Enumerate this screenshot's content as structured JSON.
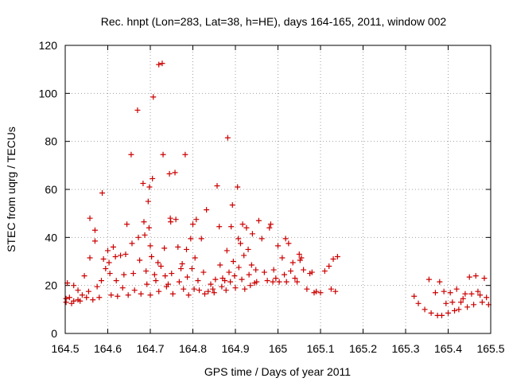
{
  "chart_data": {
    "type": "scatter",
    "title": "Rec. hnpt (Lon=283, Lat=38, h=HE), days 164-165, 2011, window 002",
    "xlabel": "GPS time / Days of year 2011",
    "ylabel": "STEC from uqrg / TECUs",
    "xlim": [
      164.5,
      165.5
    ],
    "ylim": [
      0,
      120
    ],
    "xticks": [
      164.5,
      164.6,
      164.7,
      164.8,
      164.9,
      165,
      165.1,
      165.2,
      165.3,
      165.4,
      165.5
    ],
    "xtick_labels": [
      "164.5",
      "164.6",
      "164.7",
      "164.8",
      "164.9",
      "165",
      "165.1",
      "165.2",
      "165.3",
      "165.4",
      "165.5"
    ],
    "yticks": [
      0,
      20,
      40,
      60,
      80,
      100,
      120
    ],
    "ytick_labels": [
      "0",
      "20",
      "40",
      "60",
      "80",
      "100",
      "120"
    ],
    "grid": true,
    "marker": "+",
    "series": [
      {
        "color": "#cc0000",
        "points": [
          [
            164.502,
            14.5
          ],
          [
            164.502,
            13
          ],
          [
            164.505,
            21
          ],
          [
            164.51,
            15
          ],
          [
            164.515,
            12.5
          ],
          [
            164.52,
            20
          ],
          [
            164.52,
            13.5
          ],
          [
            164.53,
            14
          ],
          [
            164.53,
            18
          ],
          [
            164.535,
            13.5
          ],
          [
            164.54,
            16
          ],
          [
            164.545,
            24
          ],
          [
            164.55,
            15
          ],
          [
            164.555,
            17.5
          ],
          [
            164.558,
            48
          ],
          [
            164.558,
            31.5
          ],
          [
            164.565,
            14
          ],
          [
            164.57,
            43
          ],
          [
            164.57,
            38.5
          ],
          [
            164.575,
            19.5
          ],
          [
            164.58,
            15
          ],
          [
            164.585,
            22
          ],
          [
            164.587,
            58.5
          ],
          [
            164.59,
            31
          ],
          [
            164.595,
            27
          ],
          [
            164.6,
            34.5
          ],
          [
            164.603,
            29.5
          ],
          [
            164.605,
            25
          ],
          [
            164.608,
            16
          ],
          [
            164.613,
            36
          ],
          [
            164.618,
            32
          ],
          [
            164.62,
            22
          ],
          [
            164.623,
            15.5
          ],
          [
            164.63,
            32.5
          ],
          [
            164.635,
            19
          ],
          [
            164.638,
            24.5
          ],
          [
            164.642,
            33
          ],
          [
            164.645,
            45.5
          ],
          [
            164.648,
            16
          ],
          [
            164.655,
            74.5
          ],
          [
            164.657,
            37.5
          ],
          [
            164.66,
            25
          ],
          [
            164.663,
            18
          ],
          [
            164.67,
            93
          ],
          [
            164.672,
            40
          ],
          [
            164.675,
            30.5
          ],
          [
            164.678,
            16.5
          ],
          [
            164.683,
            62.5
          ],
          [
            164.685,
            46.5
          ],
          [
            164.687,
            41
          ],
          [
            164.69,
            26
          ],
          [
            164.692,
            20.5
          ],
          [
            164.695,
            55
          ],
          [
            164.697,
            44
          ],
          [
            164.698,
            61
          ],
          [
            164.7,
            36.5
          ],
          [
            164.7,
            16
          ],
          [
            164.703,
            32
          ],
          [
            164.707,
            98.5
          ],
          [
            164.705,
            64.5
          ],
          [
            164.71,
            24.5
          ],
          [
            164.713,
            22
          ],
          [
            164.718,
            29.5
          ],
          [
            164.72,
            112
          ],
          [
            164.72,
            17.5
          ],
          [
            164.725,
            28
          ],
          [
            164.728,
            112.5
          ],
          [
            164.73,
            74.5
          ],
          [
            164.733,
            35.5
          ],
          [
            164.735,
            24
          ],
          [
            164.738,
            19.5
          ],
          [
            164.742,
            20.5
          ],
          [
            164.745,
            66.5
          ],
          [
            164.747,
            48
          ],
          [
            164.748,
            46.5
          ],
          [
            164.75,
            25
          ],
          [
            164.753,
            16.5
          ],
          [
            164.758,
            67
          ],
          [
            164.76,
            47.5
          ],
          [
            164.765,
            36
          ],
          [
            164.768,
            21.5
          ],
          [
            164.772,
            27
          ],
          [
            164.775,
            29
          ],
          [
            164.778,
            18.5
          ],
          [
            164.782,
            74.5
          ],
          [
            164.785,
            35
          ],
          [
            164.787,
            23.5
          ],
          [
            164.79,
            16
          ],
          [
            164.795,
            39.5
          ],
          [
            164.798,
            27
          ],
          [
            164.8,
            45.5
          ],
          [
            164.803,
            18.5
          ],
          [
            164.805,
            31.5
          ],
          [
            164.808,
            47.5
          ],
          [
            164.812,
            22
          ],
          [
            164.815,
            18
          ],
          [
            164.82,
            39.5
          ],
          [
            164.825,
            25.5
          ],
          [
            164.828,
            16.5
          ],
          [
            164.832,
            51.5
          ],
          [
            164.836,
            17.5
          ],
          [
            164.842,
            20.5
          ],
          [
            164.847,
            18.5
          ],
          [
            164.85,
            17
          ],
          [
            164.853,
            22.5
          ],
          [
            164.857,
            61.5
          ],
          [
            164.862,
            44.5
          ],
          [
            164.864,
            28.5
          ],
          [
            164.868,
            19.5
          ],
          [
            164.87,
            23
          ],
          [
            164.875,
            22
          ],
          [
            164.878,
            18
          ],
          [
            164.88,
            34.5
          ],
          [
            164.882,
            81.5
          ],
          [
            164.885,
            25.5
          ],
          [
            164.888,
            21.5
          ],
          [
            164.89,
            44.5
          ],
          [
            164.893,
            53.5
          ],
          [
            164.895,
            30
          ],
          [
            164.898,
            24
          ],
          [
            164.9,
            19
          ],
          [
            164.905,
            61
          ],
          [
            164.907,
            39.5
          ],
          [
            164.908,
            27.5
          ],
          [
            164.912,
            37.5
          ],
          [
            164.915,
            22.5
          ],
          [
            164.917,
            45.5
          ],
          [
            164.92,
            32.5
          ],
          [
            164.922,
            18.5
          ],
          [
            164.926,
            44
          ],
          [
            164.93,
            35
          ],
          [
            164.932,
            24.5
          ],
          [
            164.935,
            20
          ],
          [
            164.938,
            28.5
          ],
          [
            164.94,
            41.5
          ],
          [
            164.945,
            21
          ],
          [
            164.948,
            26.5
          ],
          [
            164.95,
            21.5
          ],
          [
            164.955,
            47
          ],
          [
            164.962,
            39.5
          ],
          [
            164.968,
            25.5
          ],
          [
            164.975,
            22
          ],
          [
            164.98,
            44
          ],
          [
            164.983,
            45.5
          ],
          [
            164.988,
            21.5
          ],
          [
            164.99,
            26.5
          ],
          [
            164.995,
            23
          ],
          [
            165.0,
            36.5
          ],
          [
            165.003,
            21.5
          ],
          [
            165.01,
            31.5
          ],
          [
            165.015,
            24.5
          ],
          [
            165.018,
            39.5
          ],
          [
            165.02,
            21.5
          ],
          [
            165.025,
            37.5
          ],
          [
            165.03,
            26
          ],
          [
            165.035,
            29.5
          ],
          [
            165.04,
            23
          ],
          [
            165.045,
            21.5
          ],
          [
            165.05,
            33
          ],
          [
            165.052,
            30.5
          ],
          [
            165.055,
            31.5
          ],
          [
            165.06,
            26.5
          ],
          [
            165.068,
            18.5
          ],
          [
            165.075,
            25
          ],
          [
            165.08,
            25.5
          ],
          [
            165.085,
            17
          ],
          [
            165.09,
            17.5
          ],
          [
            165.1,
            17
          ],
          [
            165.11,
            26
          ],
          [
            165.12,
            28
          ],
          [
            165.125,
            18.5
          ],
          [
            165.13,
            31
          ],
          [
            165.135,
            17.5
          ],
          [
            165.14,
            32
          ],
          [
            165.32,
            15.5
          ],
          [
            165.33,
            12.5
          ],
          [
            165.345,
            10
          ],
          [
            165.355,
            22.5
          ],
          [
            165.36,
            8.5
          ],
          [
            165.37,
            17
          ],
          [
            165.375,
            7.5
          ],
          [
            165.38,
            21.5
          ],
          [
            165.385,
            7.5
          ],
          [
            165.39,
            17.5
          ],
          [
            165.395,
            12.5
          ],
          [
            165.4,
            8.5
          ],
          [
            165.405,
            17
          ],
          [
            165.41,
            13
          ],
          [
            165.415,
            9.5
          ],
          [
            165.42,
            18.5
          ],
          [
            165.425,
            10
          ],
          [
            165.43,
            13
          ],
          [
            165.435,
            14.5
          ],
          [
            165.44,
            16.5
          ],
          [
            165.445,
            11
          ],
          [
            165.45,
            23.5
          ],
          [
            165.455,
            16.5
          ],
          [
            165.46,
            12
          ],
          [
            165.465,
            24
          ],
          [
            165.47,
            17.5
          ],
          [
            165.475,
            16
          ],
          [
            165.48,
            13
          ],
          [
            165.485,
            23
          ],
          [
            165.49,
            15
          ],
          [
            165.495,
            12
          ]
        ]
      }
    ]
  }
}
